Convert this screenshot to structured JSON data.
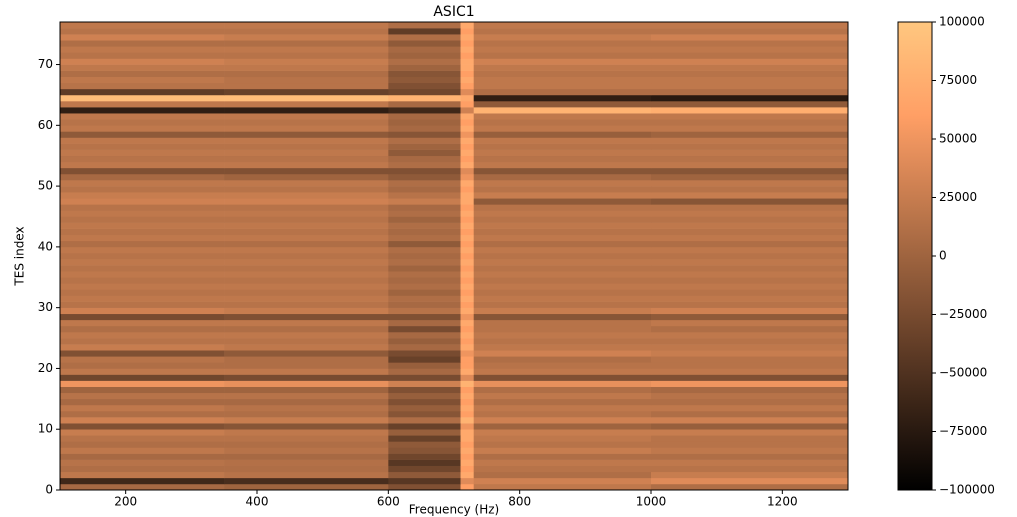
{
  "chart_data": {
    "type": "heatmap",
    "title": "ASIC1",
    "x_label": "Frequency (Hz)",
    "y_label": "TES index",
    "xlim": [
      100,
      1300
    ],
    "ylim": [
      0,
      77
    ],
    "xticks": [
      200,
      400,
      600,
      800,
      1000,
      1200
    ],
    "yticks": [
      0,
      10,
      20,
      30,
      40,
      50,
      60,
      70
    ],
    "colormap": "copper",
    "clim": [
      -100000,
      100000
    ],
    "cticks": [
      {
        "value": -100000,
        "label": "−100000"
      },
      {
        "value": -75000,
        "label": "−75000"
      },
      {
        "value": -50000,
        "label": "−50000"
      },
      {
        "value": -25000,
        "label": "−25000"
      },
      0,
      25000,
      50000,
      75000,
      100000
    ],
    "x_edges": [
      100,
      350,
      600,
      710,
      730,
      1000,
      1300
    ],
    "y_edges": [
      0,
      1,
      2,
      3,
      4,
      5,
      6,
      7,
      8,
      9,
      10,
      11,
      12,
      13,
      14,
      15,
      16,
      17,
      18,
      19,
      20,
      21,
      22,
      23,
      24,
      25,
      26,
      27,
      28,
      29,
      30,
      31,
      32,
      33,
      34,
      35,
      36,
      37,
      38,
      39,
      40,
      41,
      42,
      43,
      44,
      45,
      46,
      47,
      48,
      49,
      50,
      51,
      52,
      53,
      54,
      55,
      56,
      57,
      58,
      59,
      60,
      61,
      62,
      63,
      64,
      65,
      66,
      67,
      68,
      69,
      70,
      71,
      72,
      73,
      74,
      75,
      76,
      77
    ],
    "values": [
      [
        5000,
        0,
        -20000,
        60000,
        20000,
        10000
      ],
      [
        -60000,
        -55000,
        -45000,
        40000,
        30000,
        40000
      ],
      [
        20000,
        15000,
        -10000,
        70000,
        10000,
        25000
      ],
      [
        10000,
        10000,
        -30000,
        60000,
        15000,
        15000
      ],
      [
        15000,
        12000,
        -45000,
        70000,
        20000,
        20000
      ],
      [
        5000,
        5000,
        -30000,
        60000,
        10000,
        10000
      ],
      [
        20000,
        15000,
        -15000,
        70000,
        25000,
        20000
      ],
      [
        10000,
        10000,
        -10000,
        60000,
        15000,
        15000
      ],
      [
        15000,
        15000,
        -35000,
        70000,
        20000,
        15000
      ],
      [
        25000,
        20000,
        -5000,
        70000,
        25000,
        25000
      ],
      [
        -20000,
        -15000,
        -35000,
        50000,
        0,
        -5000
      ],
      [
        30000,
        25000,
        10000,
        80000,
        30000,
        30000
      ],
      [
        10000,
        10000,
        -15000,
        60000,
        15000,
        10000
      ],
      [
        20000,
        15000,
        -5000,
        70000,
        20000,
        20000
      ],
      [
        5000,
        5000,
        -20000,
        60000,
        10000,
        10000
      ],
      [
        15000,
        15000,
        -5000,
        70000,
        20000,
        15000
      ],
      [
        0,
        0,
        -20000,
        60000,
        10000,
        5000
      ],
      [
        50000,
        45000,
        30000,
        80000,
        45000,
        50000
      ],
      [
        -30000,
        -25000,
        -25000,
        40000,
        -20000,
        -20000
      ],
      [
        20000,
        20000,
        5000,
        70000,
        20000,
        20000
      ],
      [
        10000,
        10000,
        -5000,
        60000,
        15000,
        15000
      ],
      [
        15000,
        10000,
        -35000,
        60000,
        10000,
        15000
      ],
      [
        -20000,
        -10000,
        -25000,
        50000,
        30000,
        25000
      ],
      [
        25000,
        20000,
        5000,
        70000,
        20000,
        20000
      ],
      [
        15000,
        15000,
        -5000,
        60000,
        15000,
        15000
      ],
      [
        20000,
        20000,
        5000,
        70000,
        20000,
        20000
      ],
      [
        10000,
        10000,
        -25000,
        60000,
        15000,
        10000
      ],
      [
        20000,
        20000,
        5000,
        70000,
        15000,
        20000
      ],
      [
        -25000,
        -20000,
        -20000,
        50000,
        -15000,
        -10000
      ],
      [
        30000,
        25000,
        15000,
        70000,
        25000,
        30000
      ],
      [
        15000,
        15000,
        5000,
        60000,
        15000,
        15000
      ],
      [
        20000,
        20000,
        10000,
        70000,
        20000,
        20000
      ],
      [
        15000,
        15000,
        0,
        60000,
        15000,
        15000
      ],
      [
        20000,
        20000,
        10000,
        70000,
        20000,
        20000
      ],
      [
        15000,
        15000,
        5000,
        60000,
        15000,
        15000
      ],
      [
        20000,
        20000,
        10000,
        70000,
        20000,
        20000
      ],
      [
        15000,
        15000,
        0,
        60000,
        15000,
        15000
      ],
      [
        20000,
        20000,
        10000,
        70000,
        20000,
        20000
      ],
      [
        15000,
        15000,
        5000,
        60000,
        15000,
        15000
      ],
      [
        20000,
        20000,
        10000,
        70000,
        20000,
        20000
      ],
      [
        10000,
        10000,
        -10000,
        60000,
        10000,
        10000
      ],
      [
        20000,
        20000,
        10000,
        70000,
        20000,
        20000
      ],
      [
        15000,
        15000,
        5000,
        60000,
        15000,
        15000
      ],
      [
        20000,
        20000,
        10000,
        70000,
        20000,
        20000
      ],
      [
        15000,
        15000,
        0,
        60000,
        15000,
        15000
      ],
      [
        20000,
        20000,
        10000,
        70000,
        20000,
        20000
      ],
      [
        15000,
        15000,
        5000,
        60000,
        15000,
        15000
      ],
      [
        30000,
        30000,
        25000,
        70000,
        -10000,
        -15000
      ],
      [
        25000,
        25000,
        15000,
        70000,
        25000,
        25000
      ],
      [
        15000,
        15000,
        5000,
        60000,
        15000,
        15000
      ],
      [
        20000,
        20000,
        10000,
        70000,
        20000,
        20000
      ],
      [
        5000,
        0,
        -10000,
        50000,
        5000,
        0
      ],
      [
        -20000,
        -20000,
        -20000,
        40000,
        -15000,
        -15000
      ],
      [
        20000,
        20000,
        10000,
        70000,
        20000,
        20000
      ],
      [
        15000,
        15000,
        5000,
        60000,
        15000,
        15000
      ],
      [
        20000,
        20000,
        -10000,
        70000,
        20000,
        20000
      ],
      [
        15000,
        15000,
        0,
        60000,
        15000,
        15000
      ],
      [
        20000,
        20000,
        10000,
        70000,
        20000,
        20000
      ],
      [
        -10000,
        -10000,
        -15000,
        50000,
        -5000,
        0
      ],
      [
        20000,
        20000,
        5000,
        70000,
        20000,
        20000
      ],
      [
        15000,
        15000,
        0,
        60000,
        15000,
        15000
      ],
      [
        20000,
        20000,
        5000,
        70000,
        20000,
        20000
      ],
      [
        -70000,
        -70000,
        -60000,
        30000,
        80000,
        75000
      ],
      [
        20000,
        20000,
        5000,
        60000,
        -10000,
        -10000
      ],
      [
        90000,
        90000,
        80000,
        70000,
        -70000,
        -75000
      ],
      [
        -40000,
        -35000,
        -30000,
        40000,
        10000,
        10000
      ],
      [
        15000,
        15000,
        -20000,
        60000,
        20000,
        20000
      ],
      [
        20000,
        15000,
        -10000,
        70000,
        20000,
        20000
      ],
      [
        10000,
        10000,
        -15000,
        60000,
        15000,
        15000
      ],
      [
        20000,
        20000,
        0,
        70000,
        20000,
        20000
      ],
      [
        30000,
        25000,
        10000,
        70000,
        30000,
        30000
      ],
      [
        15000,
        15000,
        0,
        60000,
        15000,
        15000
      ],
      [
        20000,
        20000,
        5000,
        70000,
        20000,
        20000
      ],
      [
        10000,
        10000,
        -10000,
        60000,
        15000,
        15000
      ],
      [
        30000,
        25000,
        10000,
        70000,
        25000,
        30000
      ],
      [
        15000,
        15000,
        -40000,
        60000,
        15000,
        15000
      ],
      [
        20000,
        20000,
        10000,
        70000,
        20000,
        20000
      ]
    ]
  }
}
